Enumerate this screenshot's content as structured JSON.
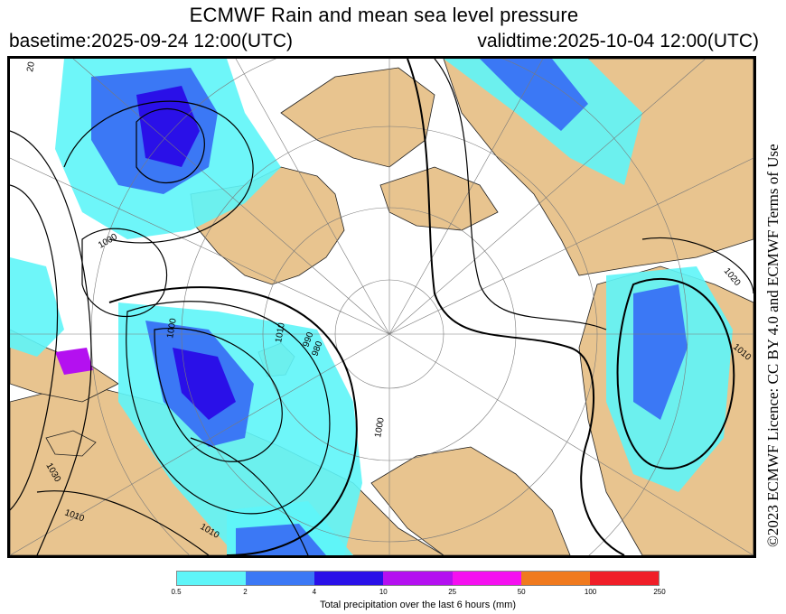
{
  "header": {
    "title": "ECMWF Rain and mean sea level pressure",
    "basetime": "basetime:2025-09-24 12:00(UTC)",
    "validtime": "validtime:2025-10-04 12:00(UTC)"
  },
  "licence": "©2023 ECMWF Licence: CC BY 4.0 and ECMWF Terms of Use",
  "map": {
    "projection": "polar stereographic",
    "colors": {
      "land": "#e8c48f",
      "ocean": "#ffffff",
      "isobar": "#000000",
      "graticule": "#7a7a7a"
    },
    "isobar_labels": [
      "1000",
      "1010",
      "1020",
      "1010",
      "1030",
      "1010",
      "990",
      "1000",
      "1010",
      "1000",
      "980",
      "20"
    ]
  },
  "legend": {
    "caption": "Total precipitation over the last 6 hours (mm)",
    "ticks": [
      "0.5",
      "2",
      "4",
      "10",
      "25",
      "50",
      "100",
      "250"
    ],
    "colors": [
      "#5ef5f8",
      "#3b78f5",
      "#2a10e8",
      "#b410f0",
      "#f510f0",
      "#f07a1e",
      "#f01e28"
    ]
  }
}
